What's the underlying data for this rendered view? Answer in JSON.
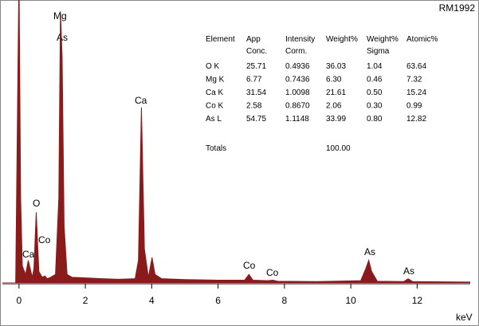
{
  "chart_data": {
    "type": "area",
    "corner_label": "RM1992",
    "x_label": "keV",
    "x": [
      -0.5,
      -0.1,
      0,
      0.05,
      0.1,
      0.2,
      0.28,
      0.34,
      0.4,
      0.45,
      0.52,
      0.6,
      0.7,
      0.78,
      0.85,
      0.95,
      1.1,
      1.2,
      1.25,
      1.3,
      1.36,
      1.45,
      1.6,
      2.0,
      2.5,
      3.0,
      3.5,
      3.6,
      3.69,
      3.78,
      3.9,
      4.01,
      4.1,
      4.3,
      5.0,
      6.0,
      6.8,
      6.93,
      7.05,
      7.5,
      7.65,
      7.8,
      9.0,
      10.3,
      10.45,
      10.54,
      10.63,
      10.8,
      11.6,
      11.73,
      11.86,
      13.6
    ],
    "values": [
      0,
      0,
      110,
      30,
      6,
      3,
      8,
      5,
      2,
      5,
      25,
      4,
      2,
      2.5,
      1.5,
      2,
      3,
      30,
      96,
      80,
      20,
      3,
      2,
      1.8,
      1.5,
      1.3,
      1.5,
      8,
      62,
      12,
      2,
      9,
      3,
      1.5,
      1.2,
      1,
      1,
      3,
      1,
      0.8,
      1,
      0.6,
      0.5,
      0.8,
      5,
      8,
      4,
      0.6,
      0.5,
      1.5,
      0.5,
      0.3
    ],
    "color": "#8b1a1a",
    "xlim": [
      -0.5,
      13.6
    ],
    "xticks": [
      0,
      2,
      4,
      6,
      8,
      10,
      12
    ],
    "ylim": [
      0,
      100
    ],
    "annotations": [
      "Mg",
      "As",
      "O",
      "Co",
      "Ca",
      "Ca",
      "Co",
      "Co",
      "As",
      "As"
    ]
  },
  "table": {
    "header": [
      [
        "Element",
        "App",
        "Intensity",
        "Weight%",
        "Weight%",
        "Atomic%"
      ],
      [
        "",
        "Conc.",
        "Corm.",
        "",
        "Sigma",
        ""
      ]
    ],
    "rows": [
      [
        "O K",
        "25.71",
        "0.4936",
        "36.03",
        "1.04",
        "63.64"
      ],
      [
        "Mg K",
        "6.77",
        "0.7436",
        "6.30",
        "0.46",
        "7.32"
      ],
      [
        "Ca K",
        "31.54",
        "1.0098",
        "21.61",
        "0.50",
        "15.24"
      ],
      [
        "Co K",
        "2.58",
        "0.8670",
        "2.06",
        "0.30",
        "0.99"
      ],
      [
        "As L",
        "54.75",
        "1.1148",
        "33.99",
        "0.80",
        "12.82"
      ]
    ],
    "totals": [
      "Totals",
      "100.00"
    ]
  }
}
